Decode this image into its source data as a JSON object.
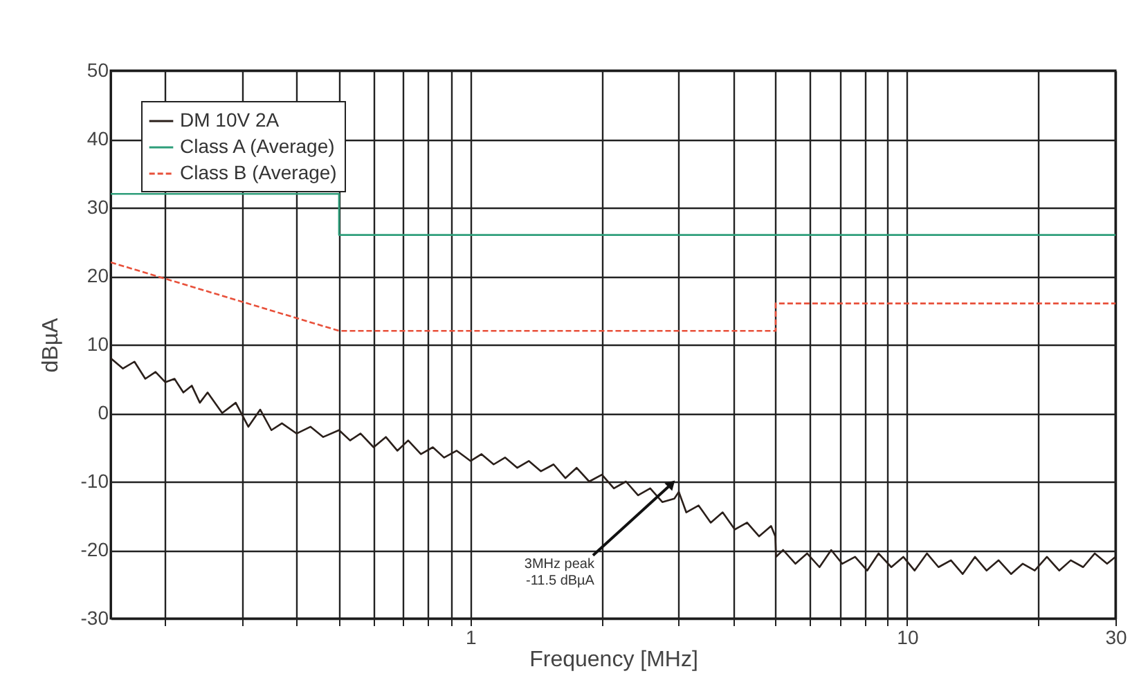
{
  "chart_data": {
    "type": "line",
    "xlabel": "Frequency [MHz]",
    "ylabel": "dBµA",
    "log": "x",
    "grid": true,
    "legend": "top left",
    "xlim": [
      0.15,
      30
    ],
    "ylim": [
      -30,
      50
    ],
    "xticks": [
      {
        "value": 0.2,
        "label": null
      },
      {
        "value": 0.3,
        "label": null
      },
      {
        "value": 0.4,
        "label": null
      },
      {
        "value": 0.5,
        "label": null
      },
      {
        "value": 0.6,
        "label": null
      },
      {
        "value": 0.7,
        "label": null
      },
      {
        "value": 0.8,
        "label": null
      },
      {
        "value": 0.9,
        "label": null
      },
      1,
      {
        "value": 2,
        "label": null
      },
      {
        "value": 3,
        "label": null
      },
      {
        "value": 4,
        "label": null
      },
      {
        "value": 5,
        "label": null
      },
      {
        "value": 6,
        "label": null
      },
      {
        "value": 7,
        "label": null
      },
      {
        "value": 8,
        "label": null
      },
      {
        "value": 9,
        "label": null
      },
      10,
      {
        "value": 20,
        "label": null
      },
      30
    ],
    "yticks": [
      -30,
      -20,
      -10,
      0,
      10,
      20,
      30,
      40,
      50
    ],
    "annotations": [
      {
        "text": "3MHz peak\n-11.5 dBµA",
        "x": 3,
        "y": -11.5
      }
    ],
    "series": [
      {
        "name": "DM 10V 2A",
        "color": "#2a1f1a",
        "line_style": "solid",
        "x": [
          0.15,
          0.16,
          0.17,
          0.18,
          0.19,
          0.2,
          0.21,
          0.22,
          0.23,
          0.24,
          0.25,
          0.27,
          0.29,
          0.31,
          0.33,
          0.35,
          0.37,
          0.4,
          0.43,
          0.46,
          0.5,
          0.53,
          0.56,
          0.6,
          0.64,
          0.68,
          0.72,
          0.77,
          0.82,
          0.87,
          0.93,
          1.0,
          1.06,
          1.13,
          1.2,
          1.28,
          1.36,
          1.45,
          1.55,
          1.65,
          1.75,
          1.87,
          2.0,
          2.13,
          2.27,
          2.42,
          2.58,
          2.75,
          2.93,
          3.0,
          3.12,
          3.33,
          3.55,
          3.78,
          4.03,
          4.3,
          4.58,
          4.88,
          4.99,
          5.01,
          5.2,
          5.55,
          5.9,
          6.3,
          6.7,
          7.1,
          7.6,
          8.1,
          8.6,
          9.2,
          9.8,
          10.4,
          11.1,
          11.8,
          12.6,
          13.4,
          14.3,
          15.2,
          16.2,
          17.3,
          18.4,
          19.6,
          20.9,
          22.3,
          23.7,
          25.3,
          26.9,
          28.7,
          30
        ],
        "values": [
          8,
          6.5,
          7.5,
          5,
          6,
          4.5,
          5,
          3,
          4,
          1.5,
          3,
          0,
          1.5,
          -2,
          0.5,
          -2.5,
          -1.5,
          -3,
          -2,
          -3.5,
          -2.5,
          -4,
          -3,
          -5,
          -3.5,
          -5.5,
          -4,
          -6,
          -5,
          -6.5,
          -5.5,
          -7,
          -6,
          -7.5,
          -6.5,
          -8,
          -7,
          -8.5,
          -7.5,
          -9.5,
          -8,
          -10,
          -9,
          -11,
          -10,
          -12,
          -11,
          -13,
          -12.5,
          -11.5,
          -14.5,
          -13.5,
          -16,
          -14.5,
          -17,
          -16,
          -18,
          -16.5,
          -18,
          -21,
          -20,
          -22,
          -20.5,
          -22.5,
          -20,
          -22,
          -21,
          -23,
          -20.5,
          -22.5,
          -21,
          -23,
          -20.5,
          -22.5,
          -21.5,
          -23.5,
          -21,
          -23,
          -21.5,
          -23.5,
          -22,
          -23,
          -21,
          -23,
          -21.5,
          -22.5,
          -20.5,
          -22,
          -21
        ]
      },
      {
        "name": "Class A (Average)",
        "color": "#2e9e7a",
        "line_style": "solid",
        "x": [
          0.15,
          0.5,
          0.5,
          30
        ],
        "values": [
          32,
          32,
          26,
          26
        ]
      },
      {
        "name": "Class B (Average)",
        "color": "#e8503a",
        "line_style": "dashed",
        "x": [
          0.15,
          0.5,
          5,
          5,
          30
        ],
        "values": [
          22,
          12,
          12,
          16,
          16
        ]
      }
    ]
  }
}
